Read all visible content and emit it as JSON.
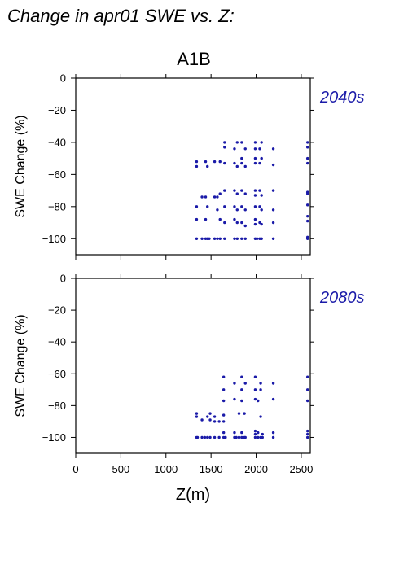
{
  "title": "Change in apr01 SWE vs. Z:",
  "subtitle": "A1B",
  "colors": {
    "points": "#1a1aa8",
    "panel_label": "#1a1aa8"
  },
  "chart_data": [
    {
      "type": "scatter",
      "panel_label": "2040s",
      "xlabel": "",
      "ylabel": "SWE Change (%)",
      "xlim": [
        0,
        2600
      ],
      "ylim": [
        -110,
        0
      ],
      "xticks": [
        0,
        500,
        1000,
        1500,
        2000,
        2500
      ],
      "yticks": [
        0,
        -20,
        -40,
        -60,
        -80,
        -100
      ],
      "x_tick_labels_shown": false,
      "points": [
        [
          1340,
          -52
        ],
        [
          1340,
          -55
        ],
        [
          1340,
          -80
        ],
        [
          1340,
          -88
        ],
        [
          1340,
          -100
        ],
        [
          1400,
          -74
        ],
        [
          1400,
          -100
        ],
        [
          1440,
          -52
        ],
        [
          1440,
          -74
        ],
        [
          1440,
          -88
        ],
        [
          1440,
          -100
        ],
        [
          1460,
          -55
        ],
        [
          1460,
          -80
        ],
        [
          1460,
          -100
        ],
        [
          1480,
          -100
        ],
        [
          1540,
          -52
        ],
        [
          1540,
          -74
        ],
        [
          1540,
          -100
        ],
        [
          1570,
          -74
        ],
        [
          1570,
          -82
        ],
        [
          1570,
          -100
        ],
        [
          1600,
          -52
        ],
        [
          1600,
          -72
        ],
        [
          1600,
          -88
        ],
        [
          1600,
          -100
        ],
        [
          1650,
          -40
        ],
        [
          1650,
          -43
        ],
        [
          1650,
          -53
        ],
        [
          1650,
          -70
        ],
        [
          1650,
          -80
        ],
        [
          1650,
          -90
        ],
        [
          1650,
          -100
        ],
        [
          1760,
          -44
        ],
        [
          1760,
          -53
        ],
        [
          1760,
          -70
        ],
        [
          1760,
          -80
        ],
        [
          1760,
          -88
        ],
        [
          1760,
          -100
        ],
        [
          1790,
          -40
        ],
        [
          1790,
          -55
        ],
        [
          1790,
          -72
        ],
        [
          1790,
          -82
        ],
        [
          1790,
          -90
        ],
        [
          1790,
          -100
        ],
        [
          1840,
          -40
        ],
        [
          1840,
          -50
        ],
        [
          1840,
          -53
        ],
        [
          1840,
          -70
        ],
        [
          1840,
          -80
        ],
        [
          1840,
          -90
        ],
        [
          1840,
          -100
        ],
        [
          1880,
          -44
        ],
        [
          1880,
          -55
        ],
        [
          1880,
          -72
        ],
        [
          1880,
          -82
        ],
        [
          1880,
          -92
        ],
        [
          1880,
          -100
        ],
        [
          1990,
          -40
        ],
        [
          1990,
          -44
        ],
        [
          1990,
          -50
        ],
        [
          1990,
          -53
        ],
        [
          1990,
          -70
        ],
        [
          1990,
          -73
        ],
        [
          1990,
          -80
        ],
        [
          1990,
          -88
        ],
        [
          1990,
          -91
        ],
        [
          1990,
          -100
        ],
        [
          2010,
          -100
        ],
        [
          2040,
          -44
        ],
        [
          2040,
          -53
        ],
        [
          2040,
          -70
        ],
        [
          2040,
          -80
        ],
        [
          2040,
          -90
        ],
        [
          2040,
          -100
        ],
        [
          2060,
          -40
        ],
        [
          2060,
          -50
        ],
        [
          2060,
          -73
        ],
        [
          2060,
          -82
        ],
        [
          2060,
          -91
        ],
        [
          2060,
          -100
        ],
        [
          2190,
          -44
        ],
        [
          2190,
          -54
        ],
        [
          2190,
          -70
        ],
        [
          2190,
          -82
        ],
        [
          2190,
          -90
        ],
        [
          2190,
          -100
        ],
        [
          2570,
          -40
        ],
        [
          2570,
          -43
        ],
        [
          2570,
          -50
        ],
        [
          2570,
          -53
        ],
        [
          2570,
          -71
        ],
        [
          2570,
          -72
        ],
        [
          2570,
          -79
        ],
        [
          2570,
          -86
        ],
        [
          2570,
          -89
        ],
        [
          2570,
          -99
        ],
        [
          2570,
          -100
        ]
      ]
    },
    {
      "type": "scatter",
      "panel_label": "2080s",
      "xlabel": "Z(m)",
      "ylabel": "SWE Change (%)",
      "xlim": [
        0,
        2600
      ],
      "ylim": [
        -110,
        0
      ],
      "xticks": [
        0,
        500,
        1000,
        1500,
        2000,
        2500
      ],
      "yticks": [
        0,
        -20,
        -40,
        -60,
        -80,
        -100
      ],
      "x_tick_labels_shown": true,
      "points": [
        [
          1340,
          -85
        ],
        [
          1340,
          -87
        ],
        [
          1340,
          -100
        ],
        [
          1350,
          -100
        ],
        [
          1400,
          -89
        ],
        [
          1400,
          -100
        ],
        [
          1430,
          -100
        ],
        [
          1460,
          -87
        ],
        [
          1460,
          -100
        ],
        [
          1490,
          -85
        ],
        [
          1490,
          -89
        ],
        [
          1490,
          -100
        ],
        [
          1540,
          -87
        ],
        [
          1540,
          -90
        ],
        [
          1540,
          -100
        ],
        [
          1590,
          -90
        ],
        [
          1590,
          -100
        ],
        [
          1640,
          -62
        ],
        [
          1640,
          -70
        ],
        [
          1640,
          -77
        ],
        [
          1640,
          -86
        ],
        [
          1640,
          -90
        ],
        [
          1640,
          -97
        ],
        [
          1640,
          -100
        ],
        [
          1660,
          -100
        ],
        [
          1760,
          -66
        ],
        [
          1760,
          -76
        ],
        [
          1760,
          -97
        ],
        [
          1760,
          -100
        ],
        [
          1780,
          -100
        ],
        [
          1810,
          -85
        ],
        [
          1810,
          -100
        ],
        [
          1840,
          -62
        ],
        [
          1840,
          -70
        ],
        [
          1840,
          -77
        ],
        [
          1840,
          -97
        ],
        [
          1840,
          -100
        ],
        [
          1870,
          -85
        ],
        [
          1870,
          -100
        ],
        [
          1880,
          -66
        ],
        [
          1880,
          -100
        ],
        [
          1990,
          -62
        ],
        [
          1990,
          -70
        ],
        [
          1990,
          -76
        ],
        [
          1990,
          -96
        ],
        [
          1990,
          -98
        ],
        [
          1990,
          -100
        ],
        [
          2020,
          -77
        ],
        [
          2020,
          -97
        ],
        [
          2020,
          -100
        ],
        [
          2050,
          -66
        ],
        [
          2050,
          -70
        ],
        [
          2050,
          -87
        ],
        [
          2050,
          -100
        ],
        [
          2070,
          -98
        ],
        [
          2070,
          -100
        ],
        [
          2190,
          -66
        ],
        [
          2190,
          -76
        ],
        [
          2190,
          -97
        ],
        [
          2190,
          -100
        ],
        [
          2570,
          -62
        ],
        [
          2570,
          -70
        ],
        [
          2570,
          -77
        ],
        [
          2570,
          -96
        ],
        [
          2570,
          -98
        ],
        [
          2570,
          -100
        ]
      ]
    }
  ]
}
